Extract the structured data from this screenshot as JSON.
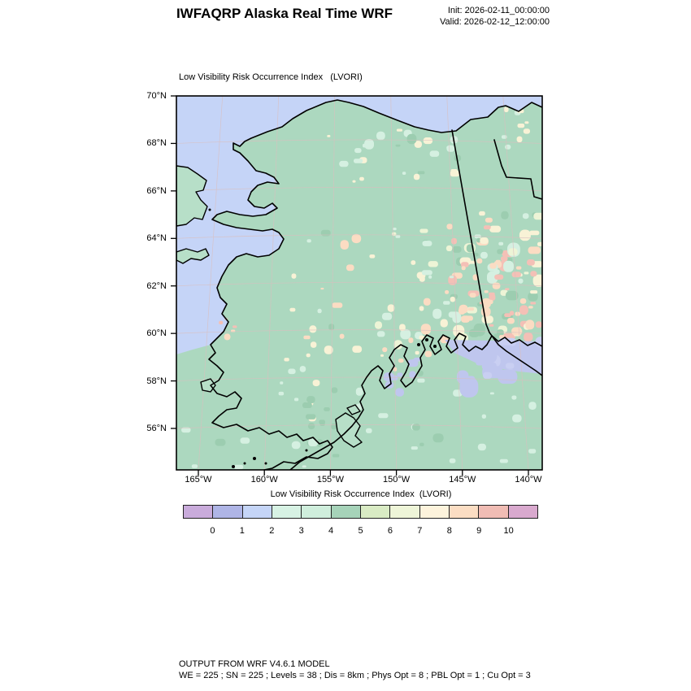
{
  "header": {
    "title": "IWFAQRP Alaska Real Time WRF",
    "init": "Init: 2026-02-11_00:00:00",
    "valid": "Valid: 2026-02-12_12:00:00"
  },
  "plot": {
    "subtitle": "Low Visibility Risk Occurrence Index   (LVORI)"
  },
  "footer": {
    "line1": "OUTPUT FROM WRF V4.6.1 MODEL",
    "line2": "WE = 225 ; SN = 225 ; Levels = 38 ; Dis = 8km ; Phys Opt = 8 ; PBL Opt = 1 ; Cu Opt = 3"
  },
  "chart_data": {
    "type": "heatmap",
    "title": "Low Visibility Risk Occurrence Index   (LVORI)",
    "x_axis": {
      "ticks": [
        "165°W",
        "160°W",
        "155°W",
        "150°W",
        "145°W",
        "140°W"
      ]
    },
    "y_axis": {
      "ticks": [
        "70°N",
        "68°N",
        "66°N",
        "64°N",
        "62°N",
        "60°N",
        "58°N",
        "56°N"
      ]
    },
    "colorbar": {
      "title": "Low Visibility Risk Occurrence Index  (LVORI)",
      "tick_labels": [
        "0",
        "1",
        "2",
        "3",
        "4",
        "5",
        "6",
        "7",
        "8",
        "9",
        "10"
      ],
      "segment_colors": [
        "#C9ABDB",
        "#AFB5E6",
        "#C5D5F7",
        "#D7F2E4",
        "#CFEEDC",
        "#A6D3B9",
        "#D9EBC4",
        "#EEF5D8",
        "#FDF3DC",
        "#FBDDC3",
        "#F0BCB4",
        "#D9A9CE"
      ],
      "value_range": [
        0,
        10
      ]
    },
    "map_summary": {
      "region": "Alaska WRF domain with Canada (141°W) and Yukon/NWT borders drawn",
      "ocean_color": "#C5D4F7",
      "land_dominant_color": "#ACD8BF",
      "northwest_ocean_lvori": 2,
      "interior_land_lvori": "4-5",
      "yukon_mottled_lvori": "6-9",
      "gulf_coast_patch_lvori": "1-2"
    }
  }
}
